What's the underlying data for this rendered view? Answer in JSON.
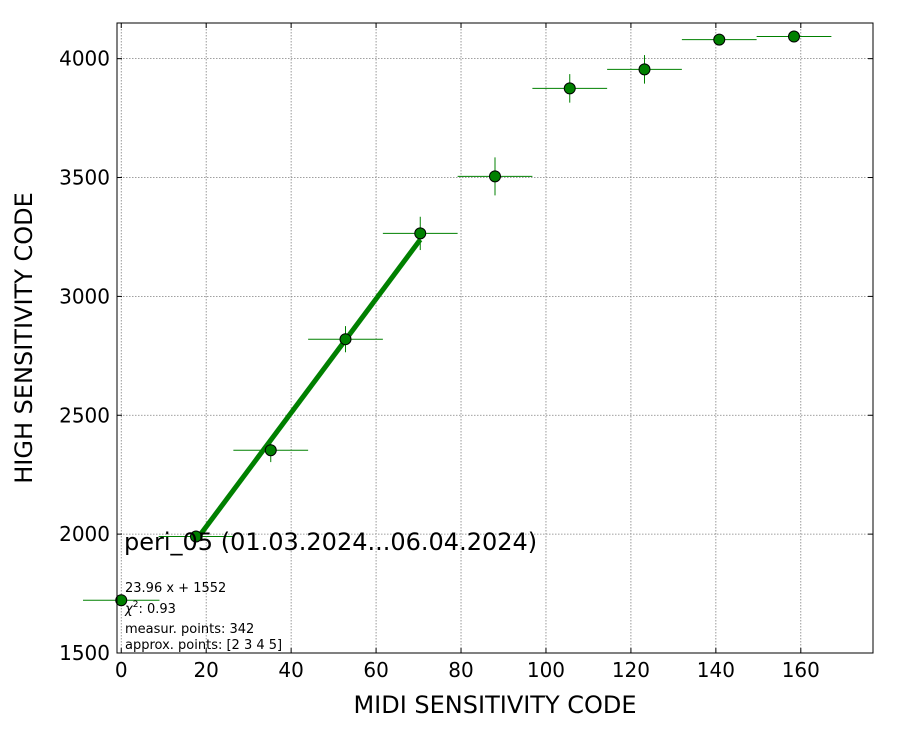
{
  "chart_data": {
    "type": "scatter",
    "xlabel": "MIDI SENSITIVITY CODE",
    "ylabel": "HIGH SENSITIVITY CODE",
    "xlim": [
      -1,
      177
    ],
    "ylim": [
      1500,
      4150
    ],
    "xticks": [
      0,
      20,
      40,
      60,
      80,
      100,
      120,
      140,
      160
    ],
    "yticks": [
      1500,
      2000,
      2500,
      3000,
      3500,
      4000
    ],
    "grid": true,
    "points": [
      {
        "x": 0.0,
        "y": 1722,
        "xerr": 9,
        "yerr": 20
      },
      {
        "x": 17.6,
        "y": 1990,
        "xerr": 8.8,
        "yerr": 22
      },
      {
        "x": 35.2,
        "y": 2353,
        "xerr": 8.8,
        "yerr": 50
      },
      {
        "x": 52.8,
        "y": 2820,
        "xerr": 8.8,
        "yerr": 55
      },
      {
        "x": 70.4,
        "y": 3265,
        "xerr": 8.8,
        "yerr": 70
      },
      {
        "x": 88.0,
        "y": 3505,
        "xerr": 8.8,
        "yerr": 80
      },
      {
        "x": 105.6,
        "y": 3875,
        "xerr": 8.8,
        "yerr": 60
      },
      {
        "x": 123.2,
        "y": 3955,
        "xerr": 8.8,
        "yerr": 60
      },
      {
        "x": 140.8,
        "y": 4080,
        "xerr": 8.8,
        "yerr": 10
      },
      {
        "x": 158.4,
        "y": 4093,
        "xerr": 8.8,
        "yerr": 10
      }
    ],
    "fit": {
      "slope": 23.96,
      "intercept": 1552,
      "x_range": [
        17.6,
        70.4
      ]
    },
    "colors": {
      "marker": "#008000",
      "fit_line": "#008000",
      "grid": "#808080"
    }
  },
  "annotations": {
    "title_text": "peri_05 (01.03.2024...06.04.2024)",
    "fit_text": "23.96 x + 1552",
    "chi_symbol": "χ",
    "chi_sup": "2",
    "chi_value": ": 0.93",
    "points_text": "measur. points: 342",
    "approx_text": "approx. points: [2 3 4 5]"
  }
}
